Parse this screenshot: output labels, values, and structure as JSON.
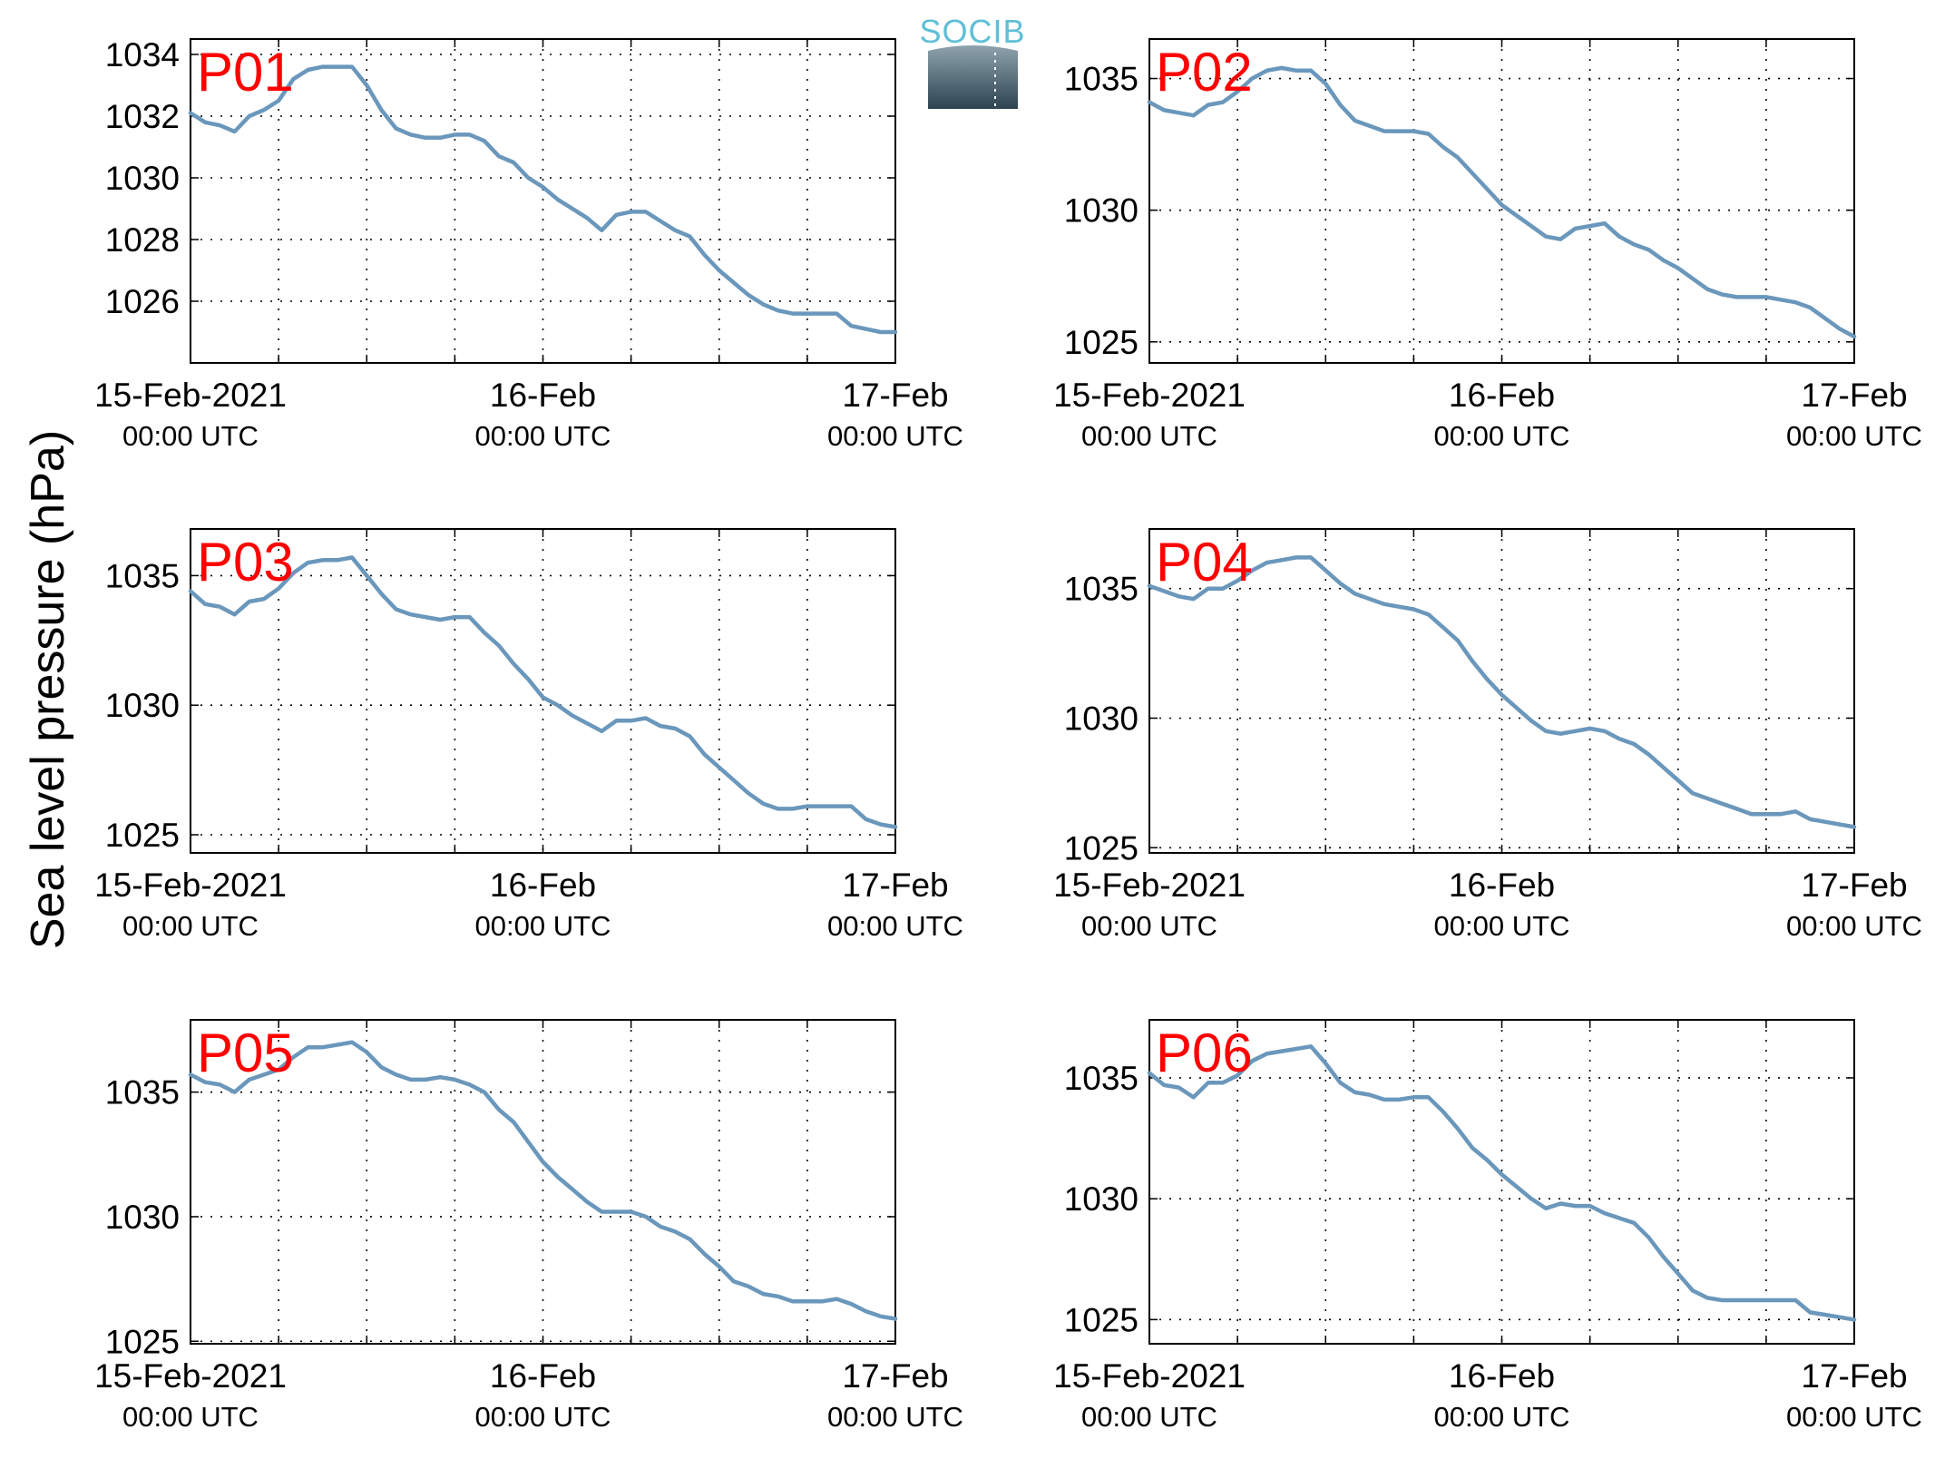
{
  "figure": {
    "ylabel": "Sea level pressure (hPa)",
    "logo_text": "SOCIB",
    "line_color": "#6a97bb",
    "label_color": "#ff0000",
    "x_tick_labels": [
      {
        "main": "15-Feb-2021",
        "sub": "00:00 UTC"
      },
      {
        "main": "16-Feb",
        "sub": "00:00 UTC"
      },
      {
        "main": "17-Feb",
        "sub": "00:00 UTC"
      }
    ]
  },
  "chart_data": [
    {
      "type": "line",
      "label": "P01",
      "x_range_hours": [
        0,
        48
      ],
      "x_grid_every_hours": 6,
      "ylim": [
        1024.0,
        1034.5
      ],
      "yticks": [
        1026,
        1028,
        1030,
        1032,
        1034
      ],
      "grid": true,
      "x": [
        0,
        1,
        2,
        3,
        4,
        5,
        6,
        7,
        8,
        9,
        10,
        11,
        12,
        13,
        14,
        15,
        16,
        17,
        18,
        19,
        20,
        21,
        22,
        23,
        24,
        25,
        26,
        27,
        28,
        29,
        30,
        31,
        32,
        33,
        34,
        35,
        36,
        37,
        38,
        39,
        40,
        41,
        42,
        43,
        44,
        45,
        46,
        47,
        48
      ],
      "y": [
        1032.1,
        1031.8,
        1031.7,
        1031.5,
        1032.0,
        1032.2,
        1032.5,
        1033.2,
        1033.5,
        1033.6,
        1033.6,
        1033.6,
        1033.0,
        1032.2,
        1031.6,
        1031.4,
        1031.3,
        1031.3,
        1031.4,
        1031.4,
        1031.2,
        1030.7,
        1030.5,
        1030.0,
        1029.7,
        1029.3,
        1029.0,
        1028.7,
        1028.3,
        1028.8,
        1028.9,
        1028.9,
        1028.6,
        1028.3,
        1028.1,
        1027.5,
        1027.0,
        1026.6,
        1026.2,
        1025.9,
        1025.7,
        1025.6,
        1025.6,
        1025.6,
        1025.6,
        1025.2,
        1025.1,
        1025.0,
        1025.0
      ]
    },
    {
      "type": "line",
      "label": "P02",
      "x_range_hours": [
        0,
        48
      ],
      "x_grid_every_hours": 6,
      "ylim": [
        1024.2,
        1036.5
      ],
      "yticks": [
        1025,
        1030,
        1035
      ],
      "grid": true,
      "x": [
        0,
        1,
        2,
        3,
        4,
        5,
        6,
        7,
        8,
        9,
        10,
        11,
        12,
        13,
        14,
        15,
        16,
        17,
        18,
        19,
        20,
        21,
        22,
        23,
        24,
        25,
        26,
        27,
        28,
        29,
        30,
        31,
        32,
        33,
        34,
        35,
        36,
        37,
        38,
        39,
        40,
        41,
        42,
        43,
        44,
        45,
        46,
        47,
        48
      ],
      "y": [
        1034.1,
        1033.8,
        1033.7,
        1033.6,
        1034.0,
        1034.1,
        1034.5,
        1035.0,
        1035.3,
        1035.4,
        1035.3,
        1035.3,
        1034.8,
        1034.0,
        1033.4,
        1033.2,
        1033.0,
        1033.0,
        1033.0,
        1032.9,
        1032.4,
        1032.0,
        1031.4,
        1030.8,
        1030.2,
        1029.8,
        1029.4,
        1029.0,
        1028.9,
        1029.3,
        1029.4,
        1029.5,
        1029.0,
        1028.7,
        1028.5,
        1028.1,
        1027.8,
        1027.4,
        1027.0,
        1026.8,
        1026.7,
        1026.7,
        1026.7,
        1026.6,
        1026.5,
        1026.3,
        1025.9,
        1025.5,
        1025.2
      ]
    },
    {
      "type": "line",
      "label": "P03",
      "x_range_hours": [
        0,
        48
      ],
      "x_grid_every_hours": 6,
      "ylim": [
        1024.3,
        1036.8
      ],
      "yticks": [
        1025,
        1030,
        1035
      ],
      "grid": true,
      "x": [
        0,
        1,
        2,
        3,
        4,
        5,
        6,
        7,
        8,
        9,
        10,
        11,
        12,
        13,
        14,
        15,
        16,
        17,
        18,
        19,
        20,
        21,
        22,
        23,
        24,
        25,
        26,
        27,
        28,
        29,
        30,
        31,
        32,
        33,
        34,
        35,
        36,
        37,
        38,
        39,
        40,
        41,
        42,
        43,
        44,
        45,
        46,
        47,
        48
      ],
      "y": [
        1034.4,
        1033.9,
        1033.8,
        1033.5,
        1034.0,
        1034.1,
        1034.5,
        1035.1,
        1035.5,
        1035.6,
        1035.6,
        1035.7,
        1035.0,
        1034.3,
        1033.7,
        1033.5,
        1033.4,
        1033.3,
        1033.4,
        1033.4,
        1032.8,
        1032.3,
        1031.6,
        1031.0,
        1030.3,
        1030.0,
        1029.6,
        1029.3,
        1029.0,
        1029.4,
        1029.4,
        1029.5,
        1029.2,
        1029.1,
        1028.8,
        1028.1,
        1027.6,
        1027.1,
        1026.6,
        1026.2,
        1026.0,
        1026.0,
        1026.1,
        1026.1,
        1026.1,
        1026.1,
        1025.6,
        1025.4,
        1025.3
      ]
    },
    {
      "type": "line",
      "label": "P04",
      "x_range_hours": [
        0,
        48
      ],
      "x_grid_every_hours": 6,
      "ylim": [
        1024.8,
        1037.3
      ],
      "yticks": [
        1025,
        1030,
        1035
      ],
      "grid": true,
      "x": [
        0,
        1,
        2,
        3,
        4,
        5,
        6,
        7,
        8,
        9,
        10,
        11,
        12,
        13,
        14,
        15,
        16,
        17,
        18,
        19,
        20,
        21,
        22,
        23,
        24,
        25,
        26,
        27,
        28,
        29,
        30,
        31,
        32,
        33,
        34,
        35,
        36,
        37,
        38,
        39,
        40,
        41,
        42,
        43,
        44,
        45,
        46,
        47,
        48
      ],
      "y": [
        1035.1,
        1034.9,
        1034.7,
        1034.6,
        1035.0,
        1035.0,
        1035.3,
        1035.7,
        1036.0,
        1036.1,
        1036.2,
        1036.2,
        1035.7,
        1035.2,
        1034.8,
        1034.6,
        1034.4,
        1034.3,
        1034.2,
        1034.0,
        1033.5,
        1033.0,
        1032.2,
        1031.5,
        1030.9,
        1030.4,
        1029.9,
        1029.5,
        1029.4,
        1029.5,
        1029.6,
        1029.5,
        1029.2,
        1029.0,
        1028.6,
        1028.1,
        1027.6,
        1027.1,
        1026.9,
        1026.7,
        1026.5,
        1026.3,
        1026.3,
        1026.3,
        1026.4,
        1026.1,
        1026.0,
        1025.9,
        1025.8
      ]
    },
    {
      "type": "line",
      "label": "P05",
      "x_range_hours": [
        0,
        48
      ],
      "x_grid_every_hours": 6,
      "ylim": [
        1024.9,
        1037.9
      ],
      "yticks": [
        1025,
        1030,
        1035
      ],
      "grid": true,
      "x": [
        0,
        1,
        2,
        3,
        4,
        5,
        6,
        7,
        8,
        9,
        10,
        11,
        12,
        13,
        14,
        15,
        16,
        17,
        18,
        19,
        20,
        21,
        22,
        23,
        24,
        25,
        26,
        27,
        28,
        29,
        30,
        31,
        32,
        33,
        34,
        35,
        36,
        37,
        38,
        39,
        40,
        41,
        42,
        43,
        44,
        45,
        46,
        47,
        48
      ],
      "y": [
        1035.7,
        1035.4,
        1035.3,
        1035.0,
        1035.5,
        1035.7,
        1035.9,
        1036.4,
        1036.8,
        1036.8,
        1036.9,
        1037.0,
        1036.6,
        1036.0,
        1035.7,
        1035.5,
        1035.5,
        1035.6,
        1035.5,
        1035.3,
        1035.0,
        1034.3,
        1033.8,
        1033.0,
        1032.2,
        1031.6,
        1031.1,
        1030.6,
        1030.2,
        1030.2,
        1030.2,
        1030.0,
        1029.6,
        1029.4,
        1029.1,
        1028.5,
        1028.0,
        1027.4,
        1027.2,
        1026.9,
        1026.8,
        1026.6,
        1026.6,
        1026.6,
        1026.7,
        1026.5,
        1026.2,
        1026.0,
        1025.9
      ]
    },
    {
      "type": "line",
      "label": "P06",
      "x_range_hours": [
        0,
        48
      ],
      "x_grid_every_hours": 6,
      "ylim": [
        1024.0,
        1037.4
      ],
      "yticks": [
        1025,
        1030,
        1035
      ],
      "grid": true,
      "x": [
        0,
        1,
        2,
        3,
        4,
        5,
        6,
        7,
        8,
        9,
        10,
        11,
        12,
        13,
        14,
        15,
        16,
        17,
        18,
        19,
        20,
        21,
        22,
        23,
        24,
        25,
        26,
        27,
        28,
        29,
        30,
        31,
        32,
        33,
        34,
        35,
        36,
        37,
        38,
        39,
        40,
        41,
        42,
        43,
        44,
        45,
        46,
        47,
        48
      ],
      "y": [
        1035.2,
        1034.7,
        1034.6,
        1034.2,
        1034.8,
        1034.8,
        1035.1,
        1035.7,
        1036.0,
        1036.1,
        1036.2,
        1036.3,
        1035.6,
        1034.8,
        1034.4,
        1034.3,
        1034.1,
        1034.1,
        1034.2,
        1034.2,
        1033.6,
        1032.9,
        1032.1,
        1031.6,
        1031.0,
        1030.5,
        1030.0,
        1029.6,
        1029.8,
        1029.7,
        1029.7,
        1029.4,
        1029.2,
        1029.0,
        1028.4,
        1027.6,
        1026.9,
        1026.2,
        1025.9,
        1025.8,
        1025.8,
        1025.8,
        1025.8,
        1025.8,
        1025.8,
        1025.3,
        1025.2,
        1025.1,
        1025.0
      ]
    }
  ]
}
